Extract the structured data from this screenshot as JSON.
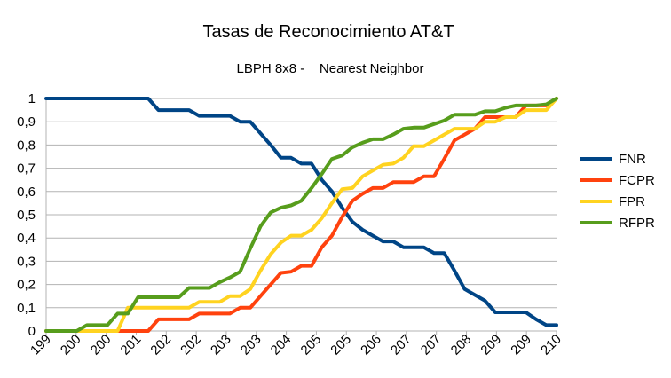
{
  "chart_data": {
    "type": "line",
    "title": "Tasas de Reconocimiento AT&T",
    "subtitle": "LBPH 8x8 -    Nearest Neighbor",
    "xlabel": "",
    "ylabel": "",
    "categories": [
      "199",
      "199",
      "199",
      "199",
      "200",
      "200",
      "200",
      "200",
      "200",
      "201",
      "201",
      "201",
      "201",
      "202",
      "202",
      "202",
      "202",
      "202",
      "203",
      "203",
      "203",
      "203",
      "203",
      "204",
      "204",
      "204",
      "204",
      "205",
      "205",
      "205",
      "205",
      "205",
      "206",
      "206",
      "206",
      "206",
      "207",
      "207",
      "207",
      "207",
      "207",
      "208",
      "208",
      "208",
      "208",
      "209",
      "209",
      "209",
      "209",
      "209",
      "210"
    ],
    "x_tick_labels": [
      "199",
      "200",
      "200",
      "201",
      "202",
      "202",
      "203",
      "203",
      "204",
      "205",
      "205",
      "206",
      "207",
      "207",
      "208",
      "209",
      "209",
      "210"
    ],
    "ylim": [
      0,
      1
    ],
    "y_ticks": [
      "0",
      "0,1",
      "0,2",
      "0,3",
      "0,4",
      "0,5",
      "0,6",
      "0,7",
      "0,8",
      "0,9",
      "1"
    ],
    "grid": true,
    "legend_position": "right",
    "series": [
      {
        "name": "FNR",
        "color": "#004586",
        "values": [
          1,
          1,
          1,
          1,
          1,
          1,
          1,
          1,
          1,
          1,
          1,
          0.95,
          0.95,
          0.95,
          0.95,
          0.925,
          0.925,
          0.925,
          0.925,
          0.9,
          0.9,
          0.85,
          0.8,
          0.745,
          0.745,
          0.72,
          0.72,
          0.65,
          0.6,
          0.53,
          0.47,
          0.435,
          0.41,
          0.385,
          0.385,
          0.36,
          0.36,
          0.36,
          0.335,
          0.335,
          0.26,
          0.18,
          0.155,
          0.13,
          0.08,
          0.08,
          0.08,
          0.08,
          0.05,
          0.025,
          0.025
        ]
      },
      {
        "name": "FCPR",
        "color": "#ff420e",
        "values": [
          0,
          0,
          0,
          0,
          0,
          0,
          0,
          0,
          0,
          0,
          0,
          0.05,
          0.05,
          0.05,
          0.05,
          0.075,
          0.075,
          0.075,
          0.075,
          0.1,
          0.1,
          0.15,
          0.2,
          0.25,
          0.255,
          0.28,
          0.28,
          0.36,
          0.41,
          0.49,
          0.56,
          0.59,
          0.615,
          0.615,
          0.64,
          0.64,
          0.64,
          0.665,
          0.665,
          0.74,
          0.82,
          0.845,
          0.87,
          0.92,
          0.92,
          0.92,
          0.92,
          0.97,
          0.97,
          0.97,
          1
        ]
      },
      {
        "name": "FPR",
        "color": "#ffd320",
        "values": [
          0,
          0,
          0,
          0,
          0,
          0,
          0,
          0,
          0.1,
          0.1,
          0.1,
          0.1,
          0.1,
          0.1,
          0.1,
          0.125,
          0.125,
          0.125,
          0.15,
          0.15,
          0.18,
          0.26,
          0.33,
          0.38,
          0.41,
          0.41,
          0.435,
          0.485,
          0.55,
          0.61,
          0.615,
          0.665,
          0.69,
          0.715,
          0.72,
          0.745,
          0.795,
          0.795,
          0.82,
          0.845,
          0.87,
          0.87,
          0.87,
          0.9,
          0.9,
          0.92,
          0.92,
          0.95,
          0.95,
          0.95,
          1
        ]
      },
      {
        "name": "RFPR",
        "color": "#579d1c",
        "values": [
          0,
          0,
          0,
          0,
          0.025,
          0.025,
          0.025,
          0.075,
          0.075,
          0.145,
          0.145,
          0.145,
          0.145,
          0.145,
          0.185,
          0.185,
          0.185,
          0.21,
          0.23,
          0.255,
          0.355,
          0.45,
          0.51,
          0.53,
          0.54,
          0.56,
          0.615,
          0.675,
          0.74,
          0.755,
          0.79,
          0.81,
          0.825,
          0.825,
          0.845,
          0.87,
          0.875,
          0.875,
          0.89,
          0.905,
          0.93,
          0.93,
          0.93,
          0.945,
          0.945,
          0.96,
          0.97,
          0.97,
          0.97,
          0.975,
          1
        ]
      }
    ]
  }
}
